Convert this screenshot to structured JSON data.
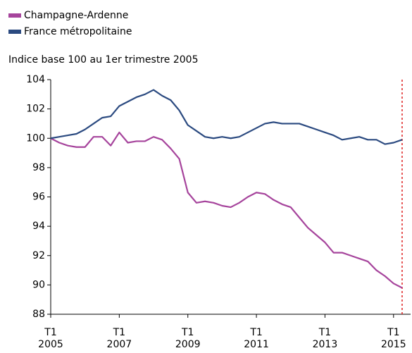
{
  "chart_data": {
    "type": "line",
    "subtitle": "Indice base 100 au 1er trimestre 2005",
    "categories": [
      "T1 2005",
      null,
      null,
      null,
      null,
      null,
      null,
      null,
      "T1 2007",
      null,
      null,
      null,
      null,
      null,
      null,
      null,
      "T1 2009",
      null,
      null,
      null,
      null,
      null,
      null,
      null,
      "T1 2011",
      null,
      null,
      null,
      null,
      null,
      null,
      null,
      "T1 2013",
      null,
      null,
      null,
      null,
      null,
      null,
      null,
      "T1 2015",
      null
    ],
    "series": [
      {
        "name": "Champagne-Ardenne",
        "color": "#a6449c",
        "values": [
          100.0,
          99.7,
          99.5,
          99.4,
          99.4,
          100.1,
          100.1,
          99.5,
          100.4,
          99.7,
          99.8,
          99.8,
          100.1,
          99.9,
          99.3,
          98.6,
          96.3,
          95.6,
          95.7,
          95.6,
          95.4,
          95.3,
          95.6,
          96.0,
          96.3,
          96.2,
          95.8,
          95.5,
          95.3,
          94.6,
          93.9,
          93.4,
          92.9,
          92.2,
          92.2,
          92.0,
          91.8,
          91.6,
          91.0,
          90.6,
          90.1,
          89.8
        ]
      },
      {
        "name": "France métropolitaine",
        "color": "#2b4a80",
        "values": [
          100.0,
          100.1,
          100.2,
          100.3,
          100.6,
          101.0,
          101.4,
          101.5,
          102.2,
          102.5,
          102.8,
          103.0,
          103.3,
          102.9,
          102.6,
          101.9,
          100.9,
          100.5,
          100.1,
          100.0,
          100.1,
          100.0,
          100.1,
          100.4,
          100.7,
          101.0,
          101.1,
          101.0,
          101.0,
          101.0,
          100.8,
          100.6,
          100.4,
          100.2,
          99.9,
          100.0,
          100.1,
          99.9,
          99.9,
          99.6,
          99.7,
          99.9
        ]
      }
    ],
    "ylim": [
      88,
      104
    ],
    "yticks": [
      88,
      90,
      92,
      94,
      96,
      98,
      100,
      102,
      104
    ],
    "legend": "top-left"
  }
}
